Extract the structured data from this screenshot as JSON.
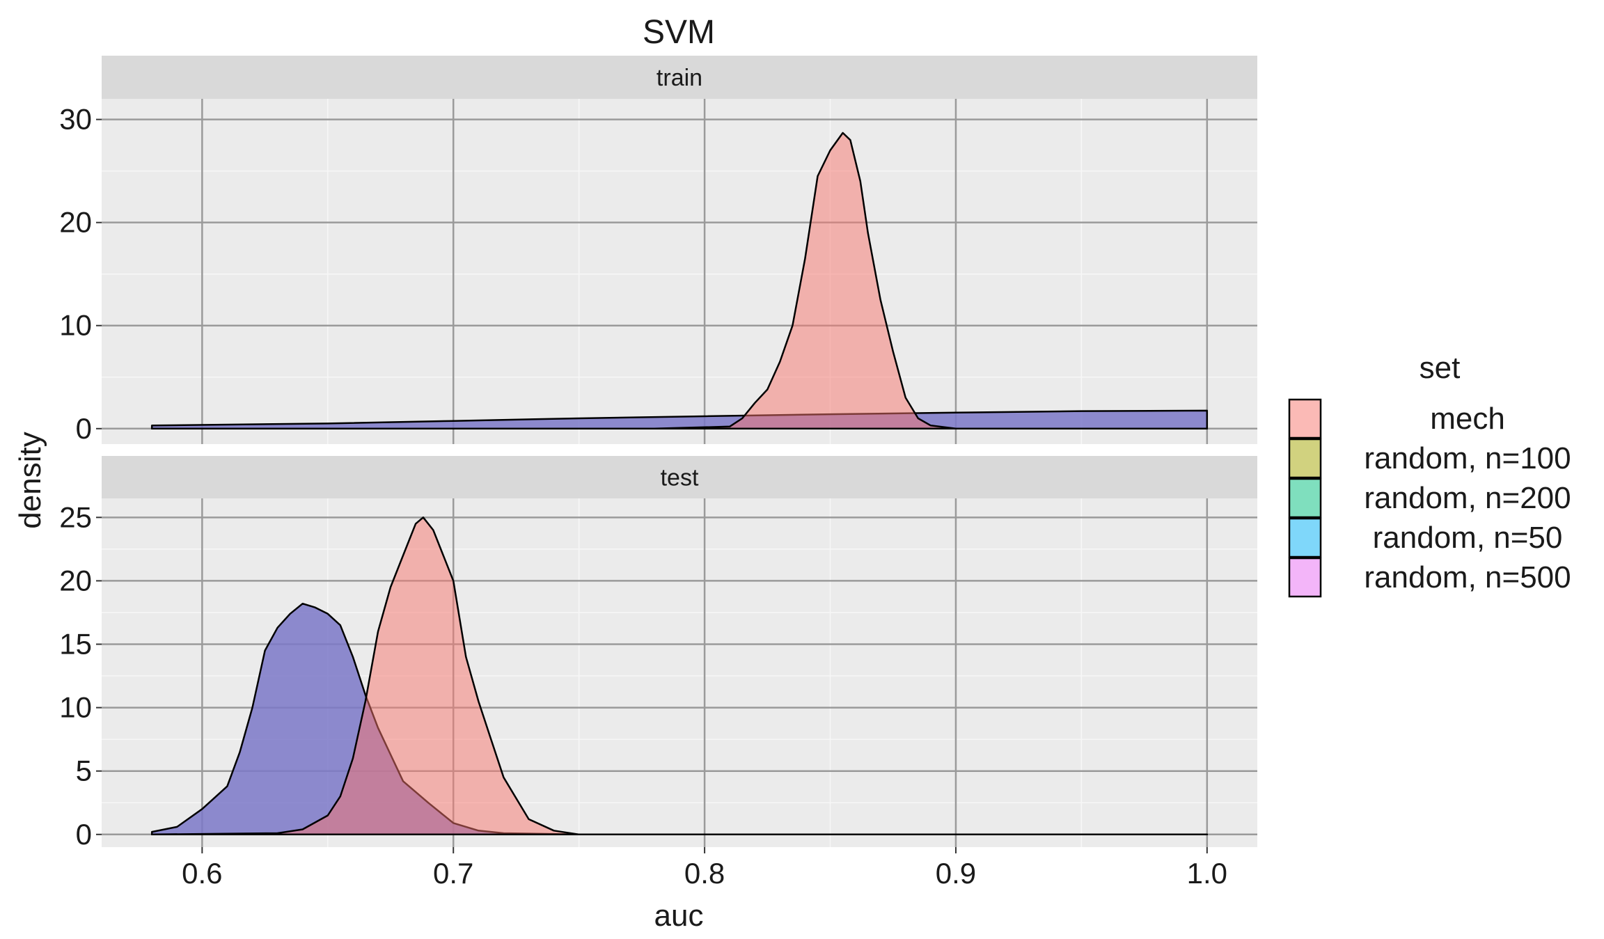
{
  "chart_data": {
    "type": "area",
    "title": "SVM",
    "xlabel": "auc",
    "ylabel": "density",
    "xlim": [
      0.56,
      1.02
    ],
    "x_ticks": [
      0.6,
      0.7,
      0.8,
      0.9,
      1.0
    ],
    "x_tick_labels": [
      "0.6",
      "0.7",
      "0.8",
      "0.9",
      "1.0"
    ],
    "grid": true,
    "legend": {
      "title": "set",
      "position": "right",
      "entries": [
        {
          "label": "mech",
          "color": "#F8766D"
        },
        {
          "label": "random, n=100",
          "color": "#A3A500"
        },
        {
          "label": "random, n=200",
          "color": "#00BF7D"
        },
        {
          "label": "random, n=50",
          "color": "#00B0F6"
        },
        {
          "label": "random, n=500",
          "color": "#E76BF3"
        }
      ]
    },
    "panels": [
      {
        "label": "train",
        "ylim": [
          -1.5,
          32
        ],
        "y_ticks": [
          0,
          10,
          20,
          30
        ],
        "y_tick_labels": [
          "0",
          "10",
          "20",
          "30"
        ],
        "series": [
          {
            "name": "random, n=500",
            "x": [
              0.58,
              0.65,
              0.7,
              0.75,
              0.8,
              0.85,
              0.9,
              0.95,
              1.0
            ],
            "y": [
              0.3,
              0.5,
              0.75,
              1.0,
              1.2,
              1.4,
              1.55,
              1.7,
              1.75
            ]
          },
          {
            "name": "mech",
            "x": [
              0.58,
              0.78,
              0.81,
              0.815,
              0.82,
              0.825,
              0.83,
              0.835,
              0.84,
              0.845,
              0.85,
              0.855,
              0.858,
              0.862,
              0.865,
              0.87,
              0.875,
              0.88,
              0.885,
              0.89,
              0.9,
              1.0
            ],
            "y": [
              0,
              0,
              0.2,
              1.0,
              2.5,
              3.8,
              6.5,
              10.0,
              16.5,
              24.5,
              27.0,
              28.7,
              28.0,
              24.0,
              19.0,
              12.5,
              7.5,
              3.0,
              1.0,
              0.3,
              0,
              0
            ]
          }
        ]
      },
      {
        "label": "test",
        "ylim": [
          -1,
          26.5
        ],
        "y_ticks": [
          0,
          5,
          10,
          15,
          20,
          25
        ],
        "y_tick_labels": [
          "0",
          "5",
          "10",
          "15",
          "20",
          "25"
        ],
        "series": [
          {
            "name": "random, n=500",
            "x": [
              0.58,
              0.59,
              0.6,
              0.61,
              0.615,
              0.62,
              0.625,
              0.63,
              0.635,
              0.64,
              0.645,
              0.65,
              0.655,
              0.66,
              0.665,
              0.67,
              0.675,
              0.68,
              0.69,
              0.7,
              0.71,
              0.72,
              0.75,
              1.0
            ],
            "y": [
              0.2,
              0.6,
              2.0,
              3.8,
              6.5,
              10.0,
              14.5,
              16.3,
              17.4,
              18.2,
              17.9,
              17.4,
              16.5,
              14.0,
              11.0,
              8.4,
              6.3,
              4.2,
              2.5,
              0.9,
              0.3,
              0.1,
              0,
              0
            ]
          },
          {
            "name": "mech",
            "x": [
              0.58,
              0.63,
              0.64,
              0.65,
              0.655,
              0.66,
              0.665,
              0.67,
              0.675,
              0.68,
              0.685,
              0.688,
              0.692,
              0.7,
              0.705,
              0.71,
              0.715,
              0.72,
              0.73,
              0.74,
              0.75,
              1.0
            ],
            "y": [
              0,
              0.1,
              0.4,
              1.5,
              3.0,
              6.0,
              10.5,
              16.0,
              19.5,
              22.0,
              24.5,
              25.0,
              24.0,
              20.0,
              14.0,
              10.5,
              7.5,
              4.5,
              1.2,
              0.3,
              0,
              0
            ]
          }
        ]
      }
    ]
  }
}
